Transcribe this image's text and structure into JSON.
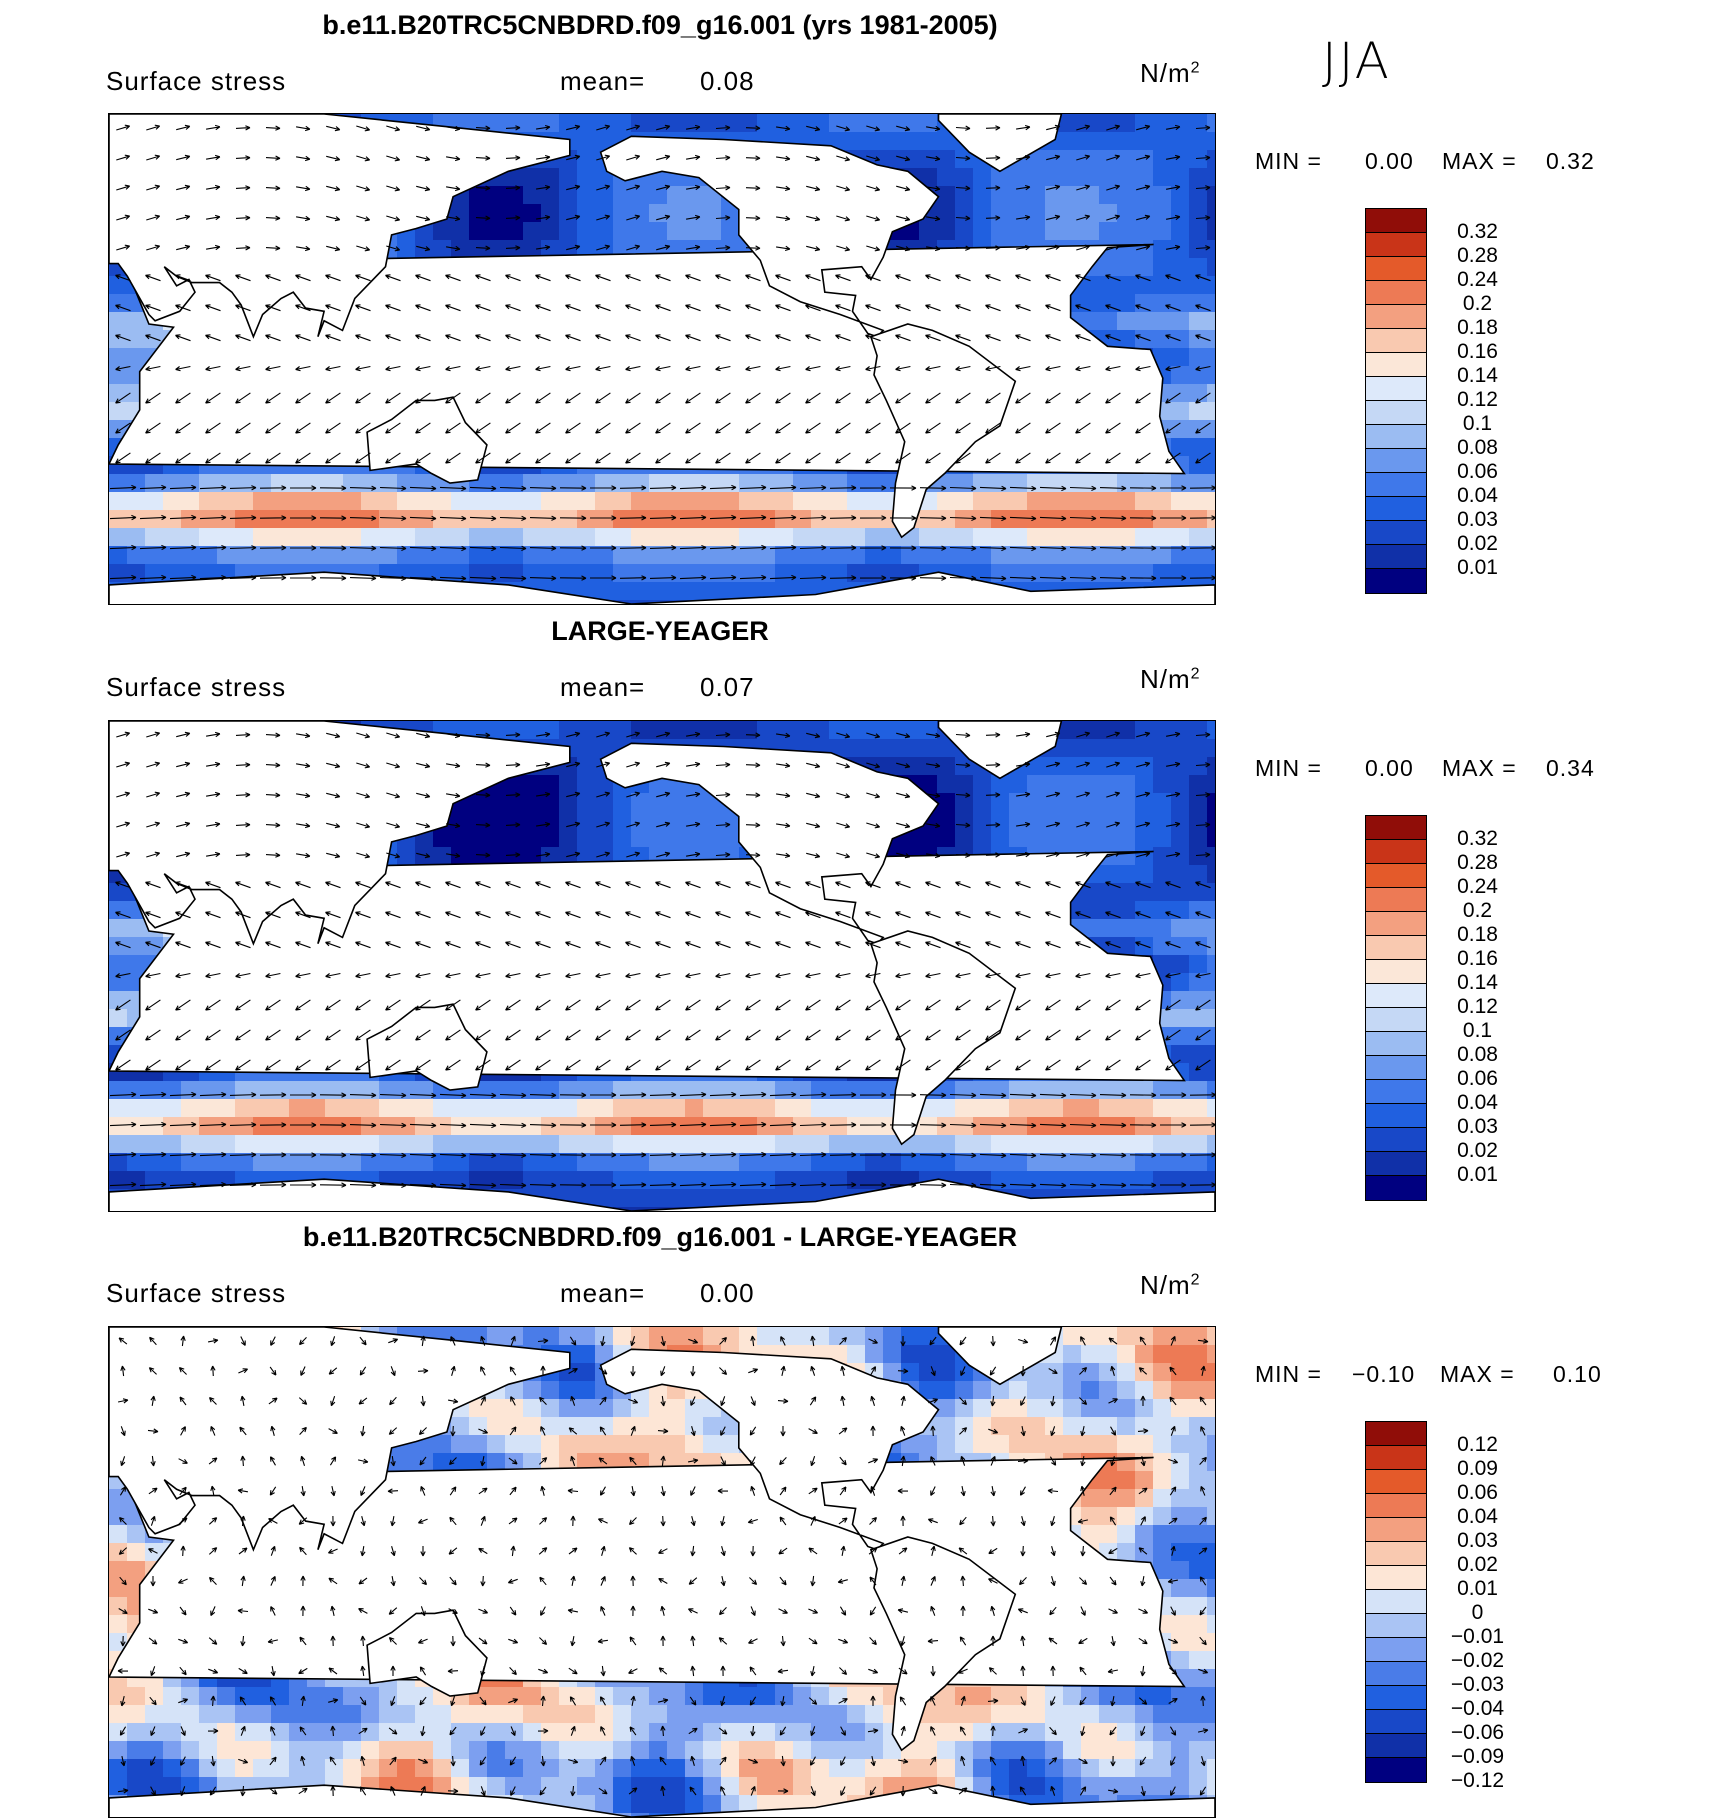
{
  "season": "JJA",
  "units": "N/m",
  "units_sup": "2",
  "panels": [
    {
      "title": "b.e11.B20TRC5CNBDRD.f09_g16.001 (yrs 1981-2005)",
      "variable": "Surface stress",
      "mean_label": "mean=",
      "mean_value": "0.08",
      "min_label": "MIN =",
      "min_value": "0.00",
      "max_label": "MAX =",
      "max_value": "0.32",
      "colorbar": [
        "0.32",
        "0.28",
        "0.24",
        "0.2",
        "0.18",
        "0.16",
        "0.14",
        "0.12",
        "0.1",
        "0.08",
        "0.06",
        "0.04",
        "0.03",
        "0.02",
        "0.01"
      ]
    },
    {
      "title": "LARGE-YEAGER",
      "variable": "Surface stress",
      "mean_label": "mean=",
      "mean_value": "0.07",
      "min_label": "MIN =",
      "min_value": "0.00",
      "max_label": "MAX =",
      "max_value": "0.34",
      "colorbar": [
        "0.32",
        "0.28",
        "0.24",
        "0.2",
        "0.18",
        "0.16",
        "0.14",
        "0.12",
        "0.1",
        "0.08",
        "0.06",
        "0.04",
        "0.03",
        "0.02",
        "0.01"
      ]
    },
    {
      "title": "b.e11.B20TRC5CNBDRD.f09_g16.001 - LARGE-YEAGER",
      "variable": "Surface stress",
      "mean_label": "mean=",
      "mean_value": "0.00",
      "min_label": "MIN =",
      "min_value": "−0.10",
      "max_label": "MAX =",
      "max_value": "0.10",
      "colorbar": [
        "0.12",
        "0.09",
        "0.06",
        "0.04",
        "0.03",
        "0.02",
        "0.01",
        "0",
        "−0.01",
        "−0.02",
        "−0.03",
        "−0.04",
        "−0.06",
        "−0.09",
        "−0.12"
      ]
    }
  ],
  "colors": {
    "seq": [
      "#000080",
      "#1030a8",
      "#1848c8",
      "#2060e0",
      "#3f78ea",
      "#6a98ee",
      "#9bbcf2",
      "#c5d8f5",
      "#dde9fa",
      "#fbe7d8",
      "#f9c9b0",
      "#f3a080",
      "#ed7a55",
      "#e45a2a",
      "#c93418",
      "#900d08"
    ],
    "div": [
      "#000080",
      "#1030a8",
      "#1848c8",
      "#2060e0",
      "#4a7ce8",
      "#7c9ff0",
      "#aac4f4",
      "#d5e3f8",
      "#fde6d6",
      "#f9c9b0",
      "#f3a080",
      "#ed7a55",
      "#e45a2a",
      "#c93418",
      "#900d08"
    ]
  },
  "chart_data": [
    {
      "type": "heatmap",
      "title": "b.e11.B20TRC5CNBDRD.f09_g16.001 (yrs 1981-2005)",
      "subtitle": "Surface stress",
      "units": "N/m^2",
      "season": "JJA",
      "mean": 0.08,
      "min": 0.0,
      "max": 0.32,
      "colorbar_levels": [
        0.01,
        0.02,
        0.03,
        0.04,
        0.06,
        0.08,
        0.1,
        0.12,
        0.14,
        0.16,
        0.18,
        0.2,
        0.24,
        0.28,
        0.32
      ]
    },
    {
      "type": "heatmap",
      "title": "LARGE-YEAGER",
      "subtitle": "Surface stress",
      "units": "N/m^2",
      "season": "JJA",
      "mean": 0.07,
      "min": 0.0,
      "max": 0.34,
      "colorbar_levels": [
        0.01,
        0.02,
        0.03,
        0.04,
        0.06,
        0.08,
        0.1,
        0.12,
        0.14,
        0.16,
        0.18,
        0.2,
        0.24,
        0.28,
        0.32
      ]
    },
    {
      "type": "heatmap",
      "title": "b.e11.B20TRC5CNBDRD.f09_g16.001 - LARGE-YEAGER",
      "subtitle": "Surface stress",
      "units": "N/m^2",
      "season": "JJA",
      "mean": 0.0,
      "min": -0.1,
      "max": 0.1,
      "colorbar_levels": [
        -0.12,
        -0.09,
        -0.06,
        -0.04,
        -0.03,
        -0.02,
        -0.01,
        0,
        0.01,
        0.02,
        0.03,
        0.04,
        0.06,
        0.09,
        0.12
      ]
    }
  ]
}
